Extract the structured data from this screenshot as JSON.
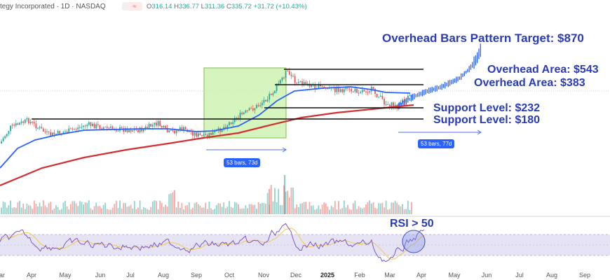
{
  "header": {
    "ticker_line": "tegy Incorporated · 1D · NASDAQ",
    "ohlc": {
      "o_label": "O",
      "o": "316.14",
      "h_label": "H",
      "h": "336.77",
      "l_label": "L",
      "l": "311.36",
      "c_label": "C",
      "c": "335.72",
      "change": "+31.72 (+10.43%)"
    },
    "btn1": "=",
    "btn2": "≈"
  },
  "annotations": {
    "target": "Overhead Bars Pattern Target: $870",
    "overhead_543": "Overhead Area: $543",
    "overhead_383": "Overhead Area: $383",
    "support_232": "Support Level: $232",
    "support_180": "Support Level: $180",
    "bars_a": "53 bars, 73d",
    "bars_b": "53 bars, 77d",
    "rsi": "RSI > 50"
  },
  "colors": {
    "price_up": "#26a69a",
    "price_down": "#ef5350",
    "ma_short": "#2962ff",
    "ma_long": "#d32f2f",
    "box_fill": "#c8f0a8",
    "box_stroke": "#7cc24a",
    "annotation_text": "#2a3bb7",
    "rsi_band": "#e6e3f5",
    "rsi_line": "#7e57c2",
    "rsi_ma": "#f2c94c",
    "rsi_circle": "#7b93e8"
  },
  "chart_data": {
    "type": "line",
    "title": "",
    "xlabel": "",
    "ylabel": "",
    "x_ticks": [
      "ar",
      "Apr",
      "May",
      "Jun",
      "Jul",
      "Aug",
      "Sep",
      "Oct",
      "Nov",
      "Dec",
      "2025",
      "Feb",
      "Mar",
      "Apr",
      "May",
      "Jun",
      "Jul",
      "Aug",
      "Sep"
    ],
    "bold_ticks": [
      "2025"
    ],
    "horizontal_levels": [
      {
        "name": "Overhead Area",
        "value": 543
      },
      {
        "name": "Overhead Area",
        "value": 383
      },
      {
        "name": "Support Level",
        "value": 232
      },
      {
        "name": "Support Level",
        "value": 180
      }
    ],
    "pattern_target": 870,
    "last_bar": {
      "open": 316.14,
      "high": 336.77,
      "low": 311.36,
      "close": 335.72,
      "change": 31.72,
      "change_pct": 10.43
    },
    "bars_pattern": {
      "bars": 53,
      "days_source": 73,
      "days_projected": 77
    },
    "rsi_threshold": 50,
    "grid": false,
    "legend": "none"
  }
}
